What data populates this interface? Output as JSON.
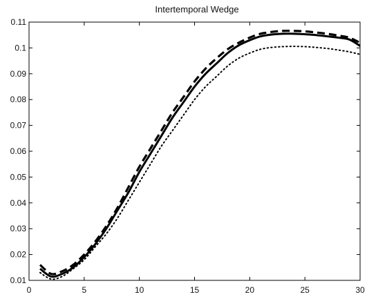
{
  "chart_data": {
    "type": "line",
    "title": "Intertemporal Wedge",
    "xlabel": "",
    "ylabel": "",
    "xlim": [
      0,
      30
    ],
    "ylim": [
      0.01,
      0.11
    ],
    "grid": false,
    "x_ticks": [
      "0",
      "5",
      "10",
      "15",
      "20",
      "25",
      "30"
    ],
    "y_ticks": [
      "0.01",
      "0.02",
      "0.03",
      "0.04",
      "0.05",
      "0.06",
      "0.07",
      "0.08",
      "0.09",
      "0.1",
      "0.11"
    ],
    "series": [
      {
        "style": "solid",
        "x": [
          1,
          2,
          3,
          4,
          5,
          6,
          7,
          8,
          9,
          10,
          11,
          12,
          13,
          14,
          15,
          16,
          17,
          18,
          19,
          20,
          21,
          22,
          23,
          24,
          25,
          26,
          27,
          28,
          29,
          30
        ],
        "y": [
          0.0145,
          0.0115,
          0.0125,
          0.015,
          0.019,
          0.024,
          0.03,
          0.037,
          0.044,
          0.052,
          0.059,
          0.066,
          0.073,
          0.079,
          0.085,
          0.09,
          0.094,
          0.098,
          0.101,
          0.103,
          0.1045,
          0.1052,
          0.1055,
          0.1055,
          0.1053,
          0.105,
          0.1045,
          0.104,
          0.1033,
          0.1008
        ]
      },
      {
        "style": "dashed",
        "x": [
          1,
          2,
          3,
          4,
          5,
          6,
          7,
          8,
          9,
          10,
          11,
          12,
          13,
          14,
          15,
          16,
          17,
          18,
          19,
          20,
          21,
          22,
          23,
          24,
          25,
          26,
          27,
          28,
          29,
          30
        ],
        "y": [
          0.016,
          0.0125,
          0.0135,
          0.016,
          0.02,
          0.025,
          0.031,
          0.038,
          0.046,
          0.054,
          0.061,
          0.068,
          0.075,
          0.081,
          0.087,
          0.092,
          0.096,
          0.0995,
          0.102,
          0.104,
          0.1055,
          0.1062,
          0.1066,
          0.1066,
          0.1064,
          0.106,
          0.1055,
          0.1048,
          0.104,
          0.102
        ]
      },
      {
        "style": "dotted",
        "x": [
          1,
          2,
          3,
          4,
          5,
          6,
          7,
          8,
          9,
          10,
          11,
          12,
          13,
          14,
          15,
          16,
          17,
          18,
          19,
          20,
          21,
          22,
          23,
          24,
          25,
          26,
          27,
          28,
          29,
          30
        ],
        "y": [
          0.013,
          0.0105,
          0.0115,
          0.0145,
          0.018,
          0.023,
          0.028,
          0.034,
          0.041,
          0.048,
          0.055,
          0.062,
          0.068,
          0.074,
          0.08,
          0.085,
          0.089,
          0.093,
          0.096,
          0.098,
          0.0995,
          0.1002,
          0.1005,
          0.1006,
          0.1005,
          0.1002,
          0.0998,
          0.0992,
          0.0985,
          0.0975
        ]
      }
    ]
  }
}
